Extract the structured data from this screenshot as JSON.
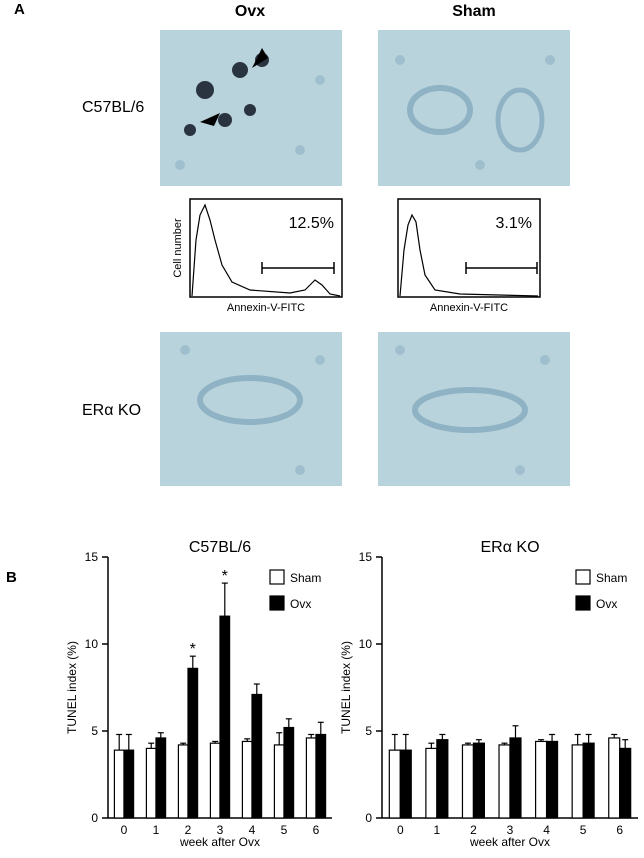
{
  "panel_a": {
    "label": "A",
    "columns": [
      "Ovx",
      "Sham"
    ],
    "rows": [
      "C57BL/6",
      "ERα KO"
    ],
    "flow": [
      {
        "percent": "12.5%",
        "y_label": "Cell number",
        "x_label": "Annexin-V-FITC"
      },
      {
        "percent": "3.1%",
        "x_label": "Annexin-V-FITC"
      }
    ]
  },
  "panel_b": {
    "label": "B"
  },
  "chart_data": [
    {
      "type": "bar",
      "title": "C57BL/6",
      "x_label": "week after Ovx",
      "y_label": "TUNEL index (%)",
      "categories": [
        "0",
        "1",
        "2",
        "3",
        "4",
        "5",
        "6"
      ],
      "series": [
        {
          "name": "Sham",
          "color": "#ffffff",
          "values": [
            3.9,
            4.0,
            4.2,
            4.3,
            4.4,
            4.2,
            4.6
          ],
          "errors": [
            0.9,
            0.3,
            0.1,
            0.1,
            0.15,
            0.7,
            0.2
          ]
        },
        {
          "name": "Ovx",
          "color": "#000000",
          "values": [
            3.9,
            4.6,
            8.6,
            11.6,
            7.1,
            5.2,
            4.8
          ],
          "errors": [
            0.9,
            0.3,
            0.7,
            1.9,
            0.6,
            0.5,
            0.7
          ],
          "significance": [
            null,
            null,
            "*",
            "*",
            null,
            null,
            null
          ]
        }
      ],
      "ylim": [
        0,
        15
      ],
      "yticks": [
        0,
        5,
        10,
        15
      ],
      "legend": "top-right"
    },
    {
      "type": "bar",
      "title": "ERα KO",
      "x_label": "week after Ovx",
      "y_label": "TUNEL index (%)",
      "categories": [
        "0",
        "1",
        "2",
        "3",
        "4",
        "5",
        "6"
      ],
      "series": [
        {
          "name": "Sham",
          "color": "#ffffff",
          "values": [
            3.9,
            4.0,
            4.2,
            4.2,
            4.4,
            4.2,
            4.6
          ],
          "errors": [
            0.9,
            0.3,
            0.1,
            0.1,
            0.1,
            0.6,
            0.2
          ]
        },
        {
          "name": "Ovx",
          "color": "#000000",
          "values": [
            3.9,
            4.5,
            4.3,
            4.6,
            4.4,
            4.3,
            4.0
          ],
          "errors": [
            0.9,
            0.3,
            0.2,
            0.7,
            0.4,
            0.5,
            0.5
          ]
        }
      ],
      "ylim": [
        0,
        15
      ],
      "yticks": [
        0,
        5,
        10,
        15
      ],
      "legend": "top-right"
    }
  ]
}
